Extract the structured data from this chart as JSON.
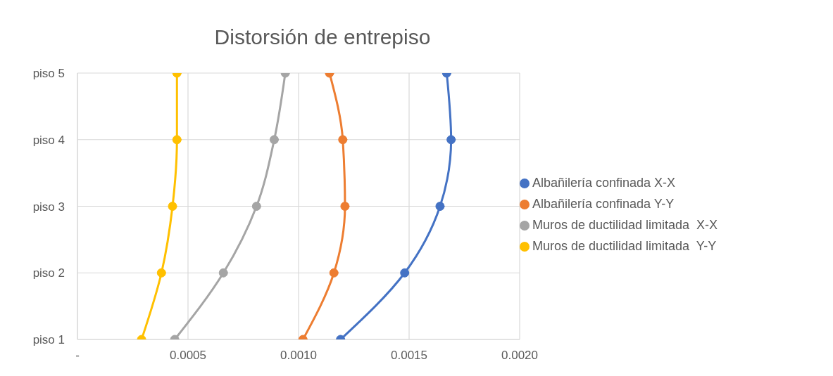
{
  "chart_data": {
    "type": "line",
    "title": "Distorsión de entrepiso",
    "orientation": "horizontal",
    "categories": [
      "piso 5",
      "piso 4",
      "piso 3",
      "piso 2",
      "piso 1"
    ],
    "xlim": [
      0,
      0.002
    ],
    "xticks": [
      {
        "value": 0,
        "label": "-"
      },
      {
        "value": 0.0005,
        "label": "0.0005"
      },
      {
        "value": 0.001,
        "label": "0.0010"
      },
      {
        "value": 0.0015,
        "label": "0.0015"
      },
      {
        "value": 0.002,
        "label": "0.0020"
      }
    ],
    "series": [
      {
        "name": "Albañilería confinada X-X",
        "color": "#4472c4",
        "values": [
          0.00167,
          0.00169,
          0.00164,
          0.00148,
          0.00119
        ]
      },
      {
        "name": "Albañilería confinada Y-Y",
        "color": "#ed7d31",
        "values": [
          0.00114,
          0.0012,
          0.00121,
          0.00116,
          0.00102
        ]
      },
      {
        "name": "Muros de ductilidad limitada  X-X",
        "color": "#a5a5a5",
        "values": [
          0.00094,
          0.00089,
          0.00081,
          0.00066,
          0.00044
        ]
      },
      {
        "name": "Muros de ductilidad limitada  Y-Y",
        "color": "#ffc000",
        "values": [
          0.00045,
          0.00045,
          0.00043,
          0.00038,
          0.00029
        ]
      }
    ],
    "grid": true,
    "legend": "right",
    "marker": "circle",
    "line_style": "solid"
  }
}
